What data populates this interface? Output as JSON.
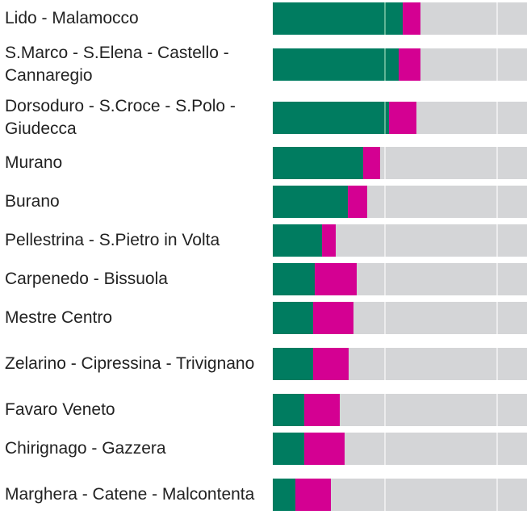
{
  "chart_data": {
    "type": "bar",
    "orientation": "horizontal",
    "stacked": true,
    "value_units": "percent of bar track",
    "categories": [
      "Lido - Malamocco",
      "S.Marco - S.Elena - Castello - Cannaregio",
      "Dorsoduro - S.Croce - S.Polo - Giudecca",
      "Murano",
      "Burano",
      "Pellestrina - S.Pietro in Volta",
      "Carpenedo - Bissuola",
      "Mestre Centro",
      "Zelarino - Cipressina - Trivignano",
      "Favaro Veneto",
      "Chirignago - Gazzera",
      "Marghera - Catene - Malcontenta"
    ],
    "series": [
      {
        "color": "#007c60",
        "values": [
          51.1,
          49.4,
          45.6,
          35.6,
          29.5,
          19.4,
          16.5,
          15.9,
          15.9,
          12.4,
          12.4,
          8.9
        ]
      },
      {
        "color": "#d40092",
        "values": [
          7.0,
          8.7,
          10.9,
          6.6,
          7.6,
          5.4,
          16.5,
          15.8,
          13.9,
          13.9,
          15.9,
          14.0
        ]
      }
    ],
    "background_color": "#d4d5d7",
    "gridlines": [
      44.1,
      88.3
    ],
    "xlim": [
      0,
      100
    ],
    "grid": true,
    "legend": "none"
  }
}
